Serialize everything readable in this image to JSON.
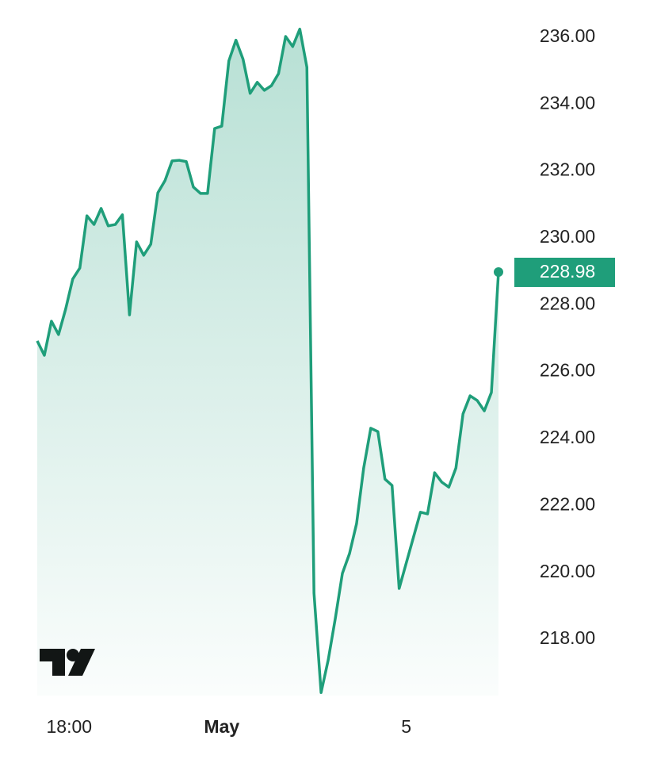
{
  "chart_data": {
    "type": "area",
    "x": [
      0,
      1,
      2,
      3,
      4,
      5,
      6,
      7,
      8,
      9,
      10,
      11,
      12,
      13,
      14,
      15,
      16,
      17,
      18,
      19,
      20,
      21,
      22,
      23,
      24,
      25,
      26,
      27,
      28,
      29,
      30,
      31,
      32,
      33,
      34,
      35,
      36,
      37,
      38,
      39,
      40,
      41,
      42,
      43,
      44,
      45,
      46,
      47,
      48,
      49,
      50,
      51,
      52,
      53,
      54,
      55,
      56,
      57,
      58,
      59,
      60,
      61,
      62,
      63,
      64,
      65
    ],
    "series": [
      {
        "color": "#1f9e7a",
        "values": [
          226.92,
          226.49,
          227.51,
          227.11,
          227.87,
          228.77,
          229.1,
          230.66,
          230.4,
          230.88,
          230.36,
          230.4,
          230.69,
          227.7,
          229.88,
          229.48,
          229.81,
          231.35,
          231.71,
          232.3,
          232.32,
          232.28,
          231.52,
          231.33,
          231.33,
          233.27,
          233.34,
          235.29,
          235.91,
          235.34,
          234.32,
          234.65,
          234.41,
          234.55,
          234.91,
          236.02,
          235.72,
          236.24,
          235.1,
          219.38,
          216.41,
          217.38,
          218.62,
          219.97,
          220.56,
          221.46,
          223.12,
          224.31,
          224.21,
          222.79,
          222.6,
          219.52,
          220.28,
          221.04,
          221.8,
          221.75,
          222.98,
          222.7,
          222.55,
          223.12,
          224.74,
          225.28,
          225.14,
          224.83,
          225.38,
          228.98
        ]
      }
    ],
    "last_price": "228.98",
    "xlim": [
      0,
      65
    ],
    "xticks": [
      {
        "value": 4.5,
        "label": "18:00"
      },
      {
        "value": 26,
        "label": "May"
      },
      {
        "value": 52,
        "label": "5"
      }
    ],
    "ylim": [
      216.32,
      237.11
    ],
    "yticks": [
      {
        "value": 218,
        "label": "218.00"
      },
      {
        "value": 220,
        "label": "220.00"
      },
      {
        "value": 222,
        "label": "222.00"
      },
      {
        "value": 224,
        "label": "224.00"
      },
      {
        "value": 226,
        "label": "226.00"
      },
      {
        "value": 228,
        "label": "228.00"
      },
      {
        "value": 230,
        "label": "230.00"
      },
      {
        "value": 232,
        "label": "232.00"
      },
      {
        "value": 234,
        "label": "234.00"
      },
      {
        "value": 236,
        "label": "236.00"
      }
    ]
  }
}
